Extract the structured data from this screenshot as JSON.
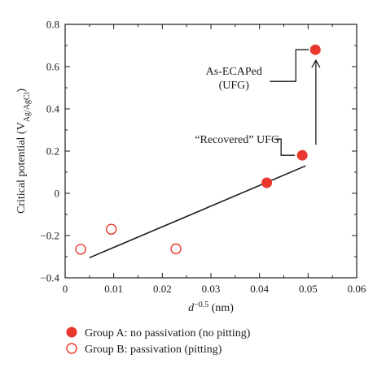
{
  "chart_data": {
    "type": "scatter",
    "xlabel": {
      "base": "d",
      "superscript": "−0.5",
      "unit": " (nm)"
    },
    "ylabel": {
      "prefix": "Critical potential (V",
      "subscript": "Ag/AgCl",
      "suffix": ")"
    },
    "xlim": [
      0,
      0.06
    ],
    "ylim": [
      -0.4,
      0.8
    ],
    "x_ticks": [
      0,
      0.01,
      0.02,
      0.03,
      0.04,
      0.05,
      0.06
    ],
    "x_tick_labels": [
      "0",
      "0.01",
      "0.02",
      "0.03",
      "0.04",
      "0.05",
      "0.06"
    ],
    "y_ticks": [
      -0.4,
      -0.2,
      0,
      0.2,
      0.4,
      0.6,
      0.8
    ],
    "y_tick_labels": [
      "−0.4",
      "−0.2",
      "0",
      "0.2",
      "0.4",
      "0.6",
      "0.8"
    ],
    "grid": false,
    "series": [
      {
        "name": "Group A: no passivation (no pitting)",
        "marker": "filled-circle",
        "color": "#e8372c",
        "points": [
          {
            "x": 0.0415,
            "y": 0.05
          },
          {
            "x": 0.0488,
            "y": 0.18
          },
          {
            "x": 0.0515,
            "y": 0.68
          }
        ]
      },
      {
        "name": "Group B: passivation (pitting)",
        "marker": "open-circle",
        "color": "#e8372c",
        "points": [
          {
            "x": 0.0032,
            "y": -0.265
          },
          {
            "x": 0.0095,
            "y": -0.17
          },
          {
            "x": 0.0228,
            "y": -0.263
          }
        ]
      }
    ],
    "fit_line": {
      "x": [
        0.005,
        0.0495
      ],
      "y": [
        -0.305,
        0.13
      ],
      "color": "#1a1a1a"
    },
    "annotations": [
      {
        "lines": [
          "As-ECAPed",
          "(UFG)"
        ],
        "target": {
          "x": 0.0515,
          "y": 0.68
        }
      },
      {
        "lines": [
          "“Recovered” UFG"
        ],
        "target": {
          "x": 0.0488,
          "y": 0.18
        }
      }
    ],
    "arrow": {
      "from": {
        "x": 0.0516,
        "y": 0.23
      },
      "to": {
        "x": 0.0516,
        "y": 0.63
      }
    },
    "legend_placement": "below"
  }
}
